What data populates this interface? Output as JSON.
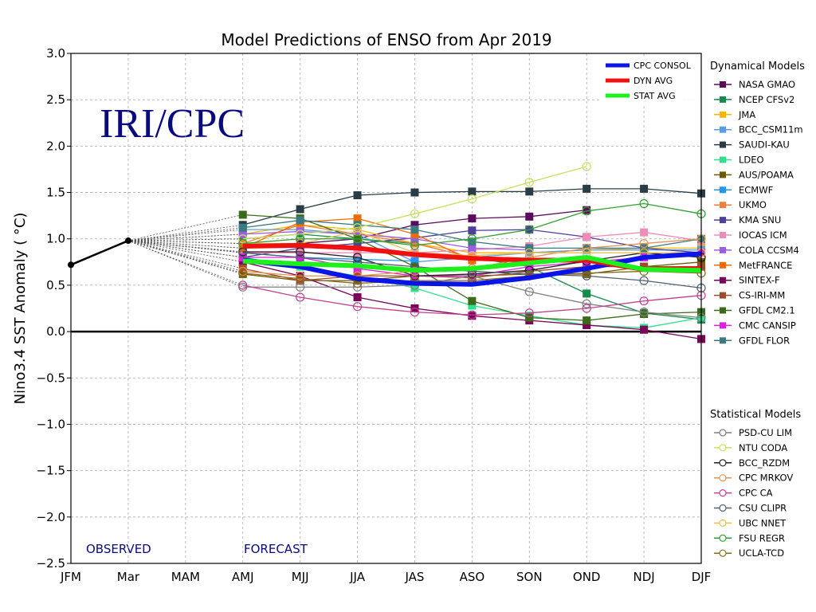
{
  "chart_data": {
    "type": "line",
    "title": "Model Predictions of ENSO from Apr 2019",
    "ylabel": "Nino3.4 SST Anomaly ( °C)",
    "xlabel": "",
    "ylim": [
      -2.5,
      3.0
    ],
    "yticks": [
      "3.0",
      "2.5",
      "2.0",
      "1.5",
      "1.0",
      "0.5",
      "0.0",
      "−0.5",
      "−1.0",
      "−1.5",
      "−2.0",
      "−2.5"
    ],
    "ytick_values": [
      3.0,
      2.5,
      2.0,
      1.5,
      1.0,
      0.5,
      0.0,
      -0.5,
      -1.0,
      -1.5,
      -2.0,
      -2.5
    ],
    "categories": [
      "JFM",
      "Mar",
      "MAM",
      "AMJ",
      "MJJ",
      "JJA",
      "JAS",
      "ASO",
      "SON",
      "OND",
      "NDJ",
      "DJF"
    ],
    "grid": true,
    "watermark": "IRI/CPC",
    "annotations": {
      "observed": "OBSERVED",
      "forecast": "FORECAST"
    },
    "observed": {
      "x": [
        "JFM",
        "Mar"
      ],
      "values": [
        0.72,
        0.98
      ],
      "color": "#000000"
    },
    "forecast_start_index": 3,
    "averages": [
      {
        "name": "CPC CONSOL",
        "color": "#0a14e6",
        "values": [
          0.77,
          0.7,
          0.57,
          0.52,
          0.51,
          0.58,
          0.68,
          0.8,
          0.84
        ]
      },
      {
        "name": "DYN AVG",
        "color": "#f01010",
        "values": [
          0.92,
          0.93,
          0.9,
          0.83,
          0.79,
          0.77,
          0.77,
          0.67,
          0.68
        ]
      },
      {
        "name": "STAT AVG",
        "color": "#1ef01e",
        "values": [
          0.76,
          0.73,
          0.71,
          0.66,
          0.68,
          0.74,
          0.8,
          0.67,
          0.66
        ]
      }
    ],
    "dynamical_title": "Dynamical Models",
    "dynamical": [
      {
        "name": "NASA GMAO",
        "color": "#5b0a5e",
        "values": [
          0.9,
          0.95,
          1.0,
          1.15,
          1.22,
          1.24,
          1.31,
          null,
          null
        ]
      },
      {
        "name": "NCEP CFSv2",
        "color": "#148b4a",
        "values": [
          1.0,
          1.05,
          1.0,
          0.95,
          0.8,
          0.7,
          0.41,
          0.2,
          0.13
        ]
      },
      {
        "name": "JMA",
        "color": "#f5b800",
        "values": [
          1.05,
          1.15,
          1.1,
          0.95,
          0.85,
          0.85,
          0.88,
          0.9,
          0.9
        ]
      },
      {
        "name": "BCC_CSM11m",
        "color": "#5c9ce6",
        "values": [
          1.1,
          1.1,
          1.05,
          0.75,
          0.8,
          0.85,
          0.88,
          0.88,
          0.88
        ]
      },
      {
        "name": "SAUDI-KAU",
        "color": "#2a3d47",
        "values": [
          1.15,
          1.32,
          1.47,
          1.5,
          1.51,
          1.51,
          1.54,
          1.54,
          1.49
        ]
      },
      {
        "name": "LDEO",
        "color": "#2ee08f",
        "values": [
          0.8,
          0.7,
          0.6,
          0.47,
          0.28,
          0.17,
          0.07,
          0.04,
          0.15
        ]
      },
      {
        "name": "AUS/POAMA",
        "color": "#6b5a00",
        "values": [
          0.62,
          0.55,
          0.55,
          0.6,
          0.6,
          0.62,
          0.62,
          0.7,
          0.75
        ]
      },
      {
        "name": "ECMWF",
        "color": "#2196f3",
        "values": [
          0.85,
          0.8,
          0.78,
          0.76,
          null,
          null,
          null,
          null,
          null
        ]
      },
      {
        "name": "UKMO",
        "color": "#f07f3c",
        "values": [
          0.95,
          1.15,
          1.05,
          0.95,
          0.8,
          null,
          null,
          null,
          null
        ]
      },
      {
        "name": "KMA SNU",
        "color": "#4f3f99",
        "values": [
          0.8,
          0.9,
          0.95,
          1.01,
          1.09,
          1.1,
          1.02,
          0.9,
          0.85
        ]
      },
      {
        "name": "IOCAS ICM",
        "color": "#f08cb8",
        "values": [
          0.85,
          0.85,
          0.85,
          0.85,
          0.88,
          0.92,
          1.02,
          1.07,
          0.98
        ]
      },
      {
        "name": "COLA CCSM4",
        "color": "#9b5de5",
        "values": [
          1.05,
          1.08,
          1.05,
          1.0,
          0.9,
          0.88,
          null,
          null,
          null
        ]
      },
      {
        "name": "MetFRANCE",
        "color": "#f06a00",
        "values": [
          0.9,
          1.18,
          1.22,
          1.05,
          0.77,
          null,
          null,
          null,
          null
        ]
      },
      {
        "name": "SINTEX-F",
        "color": "#7a005a",
        "values": [
          0.75,
          0.6,
          0.37,
          0.25,
          0.17,
          0.12,
          0.07,
          0.02,
          -0.08
        ]
      },
      {
        "name": "CS-IRI-MM",
        "color": "#a04a2a",
        "values": [
          0.68,
          0.55,
          0.6,
          0.6,
          0.58,
          0.65,
          0.7,
          0.7,
          0.7
        ]
      },
      {
        "name": "GFDL CM2.1",
        "color": "#3a6b1a",
        "values": [
          1.26,
          1.22,
          1.0,
          0.7,
          0.33,
          0.15,
          0.12,
          0.19,
          0.21
        ]
      },
      {
        "name": "CMC CANSIP",
        "color": "#e020e0",
        "values": [
          0.8,
          0.8,
          0.68,
          0.6,
          0.6,
          0.7,
          0.75,
          0.8,
          0.85
        ]
      },
      {
        "name": "GFDL FLOR",
        "color": "#3a7a80",
        "values": [
          1.12,
          1.2,
          1.15,
          1.1,
          0.97,
          0.9,
          0.9,
          0.9,
          1.0
        ]
      }
    ],
    "statistical_title": "Statistical Models",
    "statistical": [
      {
        "name": "PSD-CU LIM",
        "color": "#808080",
        "values": [
          0.48,
          0.48,
          0.48,
          0.5,
          0.6,
          0.43,
          0.3,
          0.21,
          0.15
        ]
      },
      {
        "name": "NTU CODA",
        "color": "#c8e060",
        "values": [
          1.0,
          1.05,
          1.12,
          1.27,
          1.43,
          1.61,
          1.78,
          null,
          null
        ]
      },
      {
        "name": "BCC_RZDM",
        "color": "#202020",
        "values": [
          0.86,
          0.86,
          0.8,
          0.6,
          0.62,
          0.66,
          0.76,
          0.85,
          0.8
        ]
      },
      {
        "name": "CPC MRKOV",
        "color": "#e89050",
        "values": [
          0.65,
          0.6,
          0.6,
          0.65,
          0.68,
          0.8,
          0.9,
          0.95,
          1.0
        ]
      },
      {
        "name": "CPC CA",
        "color": "#c04090",
        "values": [
          0.5,
          0.37,
          0.27,
          0.21,
          0.18,
          0.2,
          0.25,
          0.33,
          0.39
        ]
      },
      {
        "name": "CSU CLIPR",
        "color": "#506070",
        "values": [
          0.85,
          0.8,
          0.75,
          0.7,
          0.65,
          0.62,
          0.6,
          0.55,
          0.47
        ]
      },
      {
        "name": "UBC NNET",
        "color": "#e8c050",
        "values": [
          0.95,
          0.95,
          1.08,
          0.85,
          0.82,
          0.85,
          0.85,
          0.85,
          0.85
        ]
      },
      {
        "name": "FSU REGR",
        "color": "#30a030",
        "values": [
          0.95,
          1.0,
          1.0,
          0.93,
          1.0,
          1.1,
          1.3,
          1.38,
          1.27
        ]
      },
      {
        "name": "UCLA-TCD",
        "color": "#8a6a20",
        "values": [
          0.63,
          0.57,
          0.52,
          0.55,
          0.55,
          0.6,
          0.63,
          0.65,
          0.63
        ]
      }
    ]
  }
}
